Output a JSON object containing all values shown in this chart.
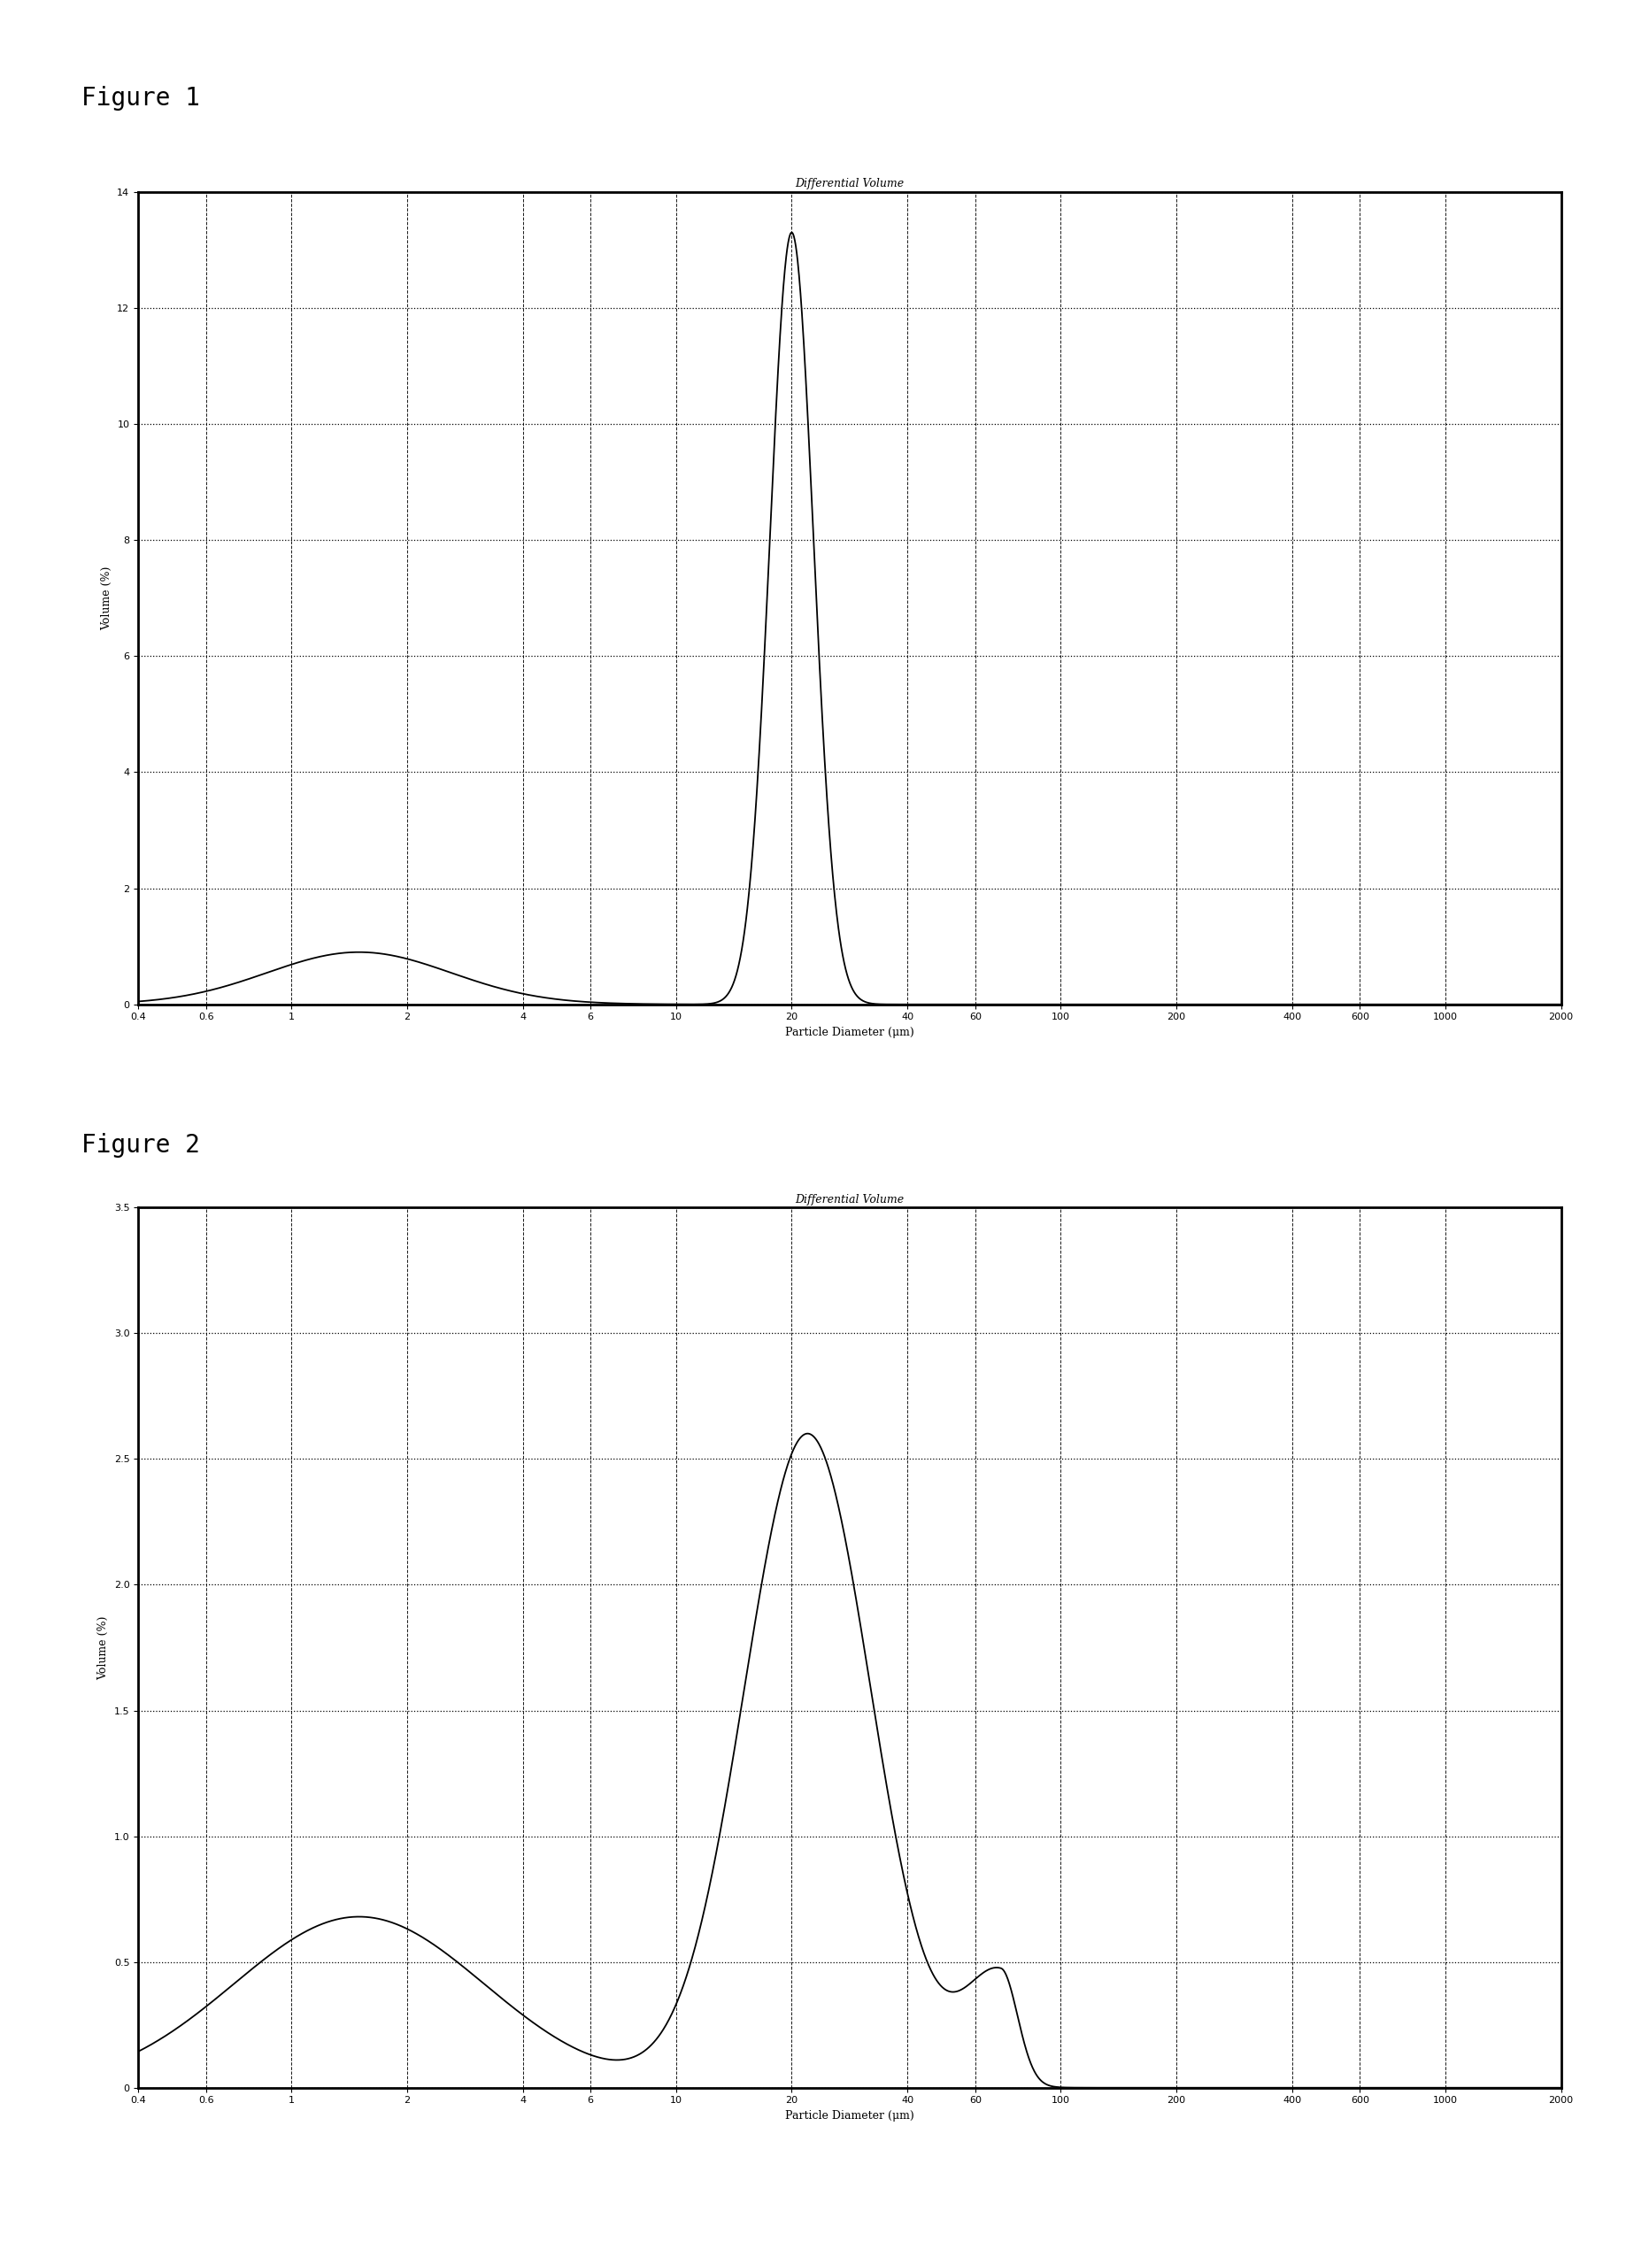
{
  "fig1_title": "Differential Volume",
  "fig2_title": "Differential Volume",
  "xlabel": "Particle Diameter (μm)",
  "ylabel": "Volume (%)",
  "fig_label1": "Figure 1",
  "fig_label2": "Figure 2",
  "fig1_ylim": [
    0,
    14
  ],
  "fig1_yticks": [
    0,
    2,
    4,
    6,
    8,
    10,
    12,
    14
  ],
  "fig2_ylim": [
    0,
    3.5
  ],
  "fig2_yticks": [
    0,
    0.5,
    1.0,
    1.5,
    2.0,
    2.5,
    3.0,
    3.5
  ],
  "x_ticks_log": [
    0.4,
    0.6,
    1,
    2,
    4,
    6,
    10,
    20,
    40,
    60,
    100,
    200,
    400,
    600,
    1000,
    2000
  ],
  "x_tick_labels": [
    "0.4",
    "0.6",
    "1",
    "2",
    "4",
    "6",
    "10",
    "20",
    "40",
    "60",
    "100",
    "200",
    "400",
    "600",
    "1000",
    "2000"
  ],
  "background_color": "#ffffff",
  "line_color": "#000000",
  "title_fontsize": 9,
  "label_fontsize": 9,
  "tick_fontsize": 8,
  "fig_label_fontsize": 20
}
